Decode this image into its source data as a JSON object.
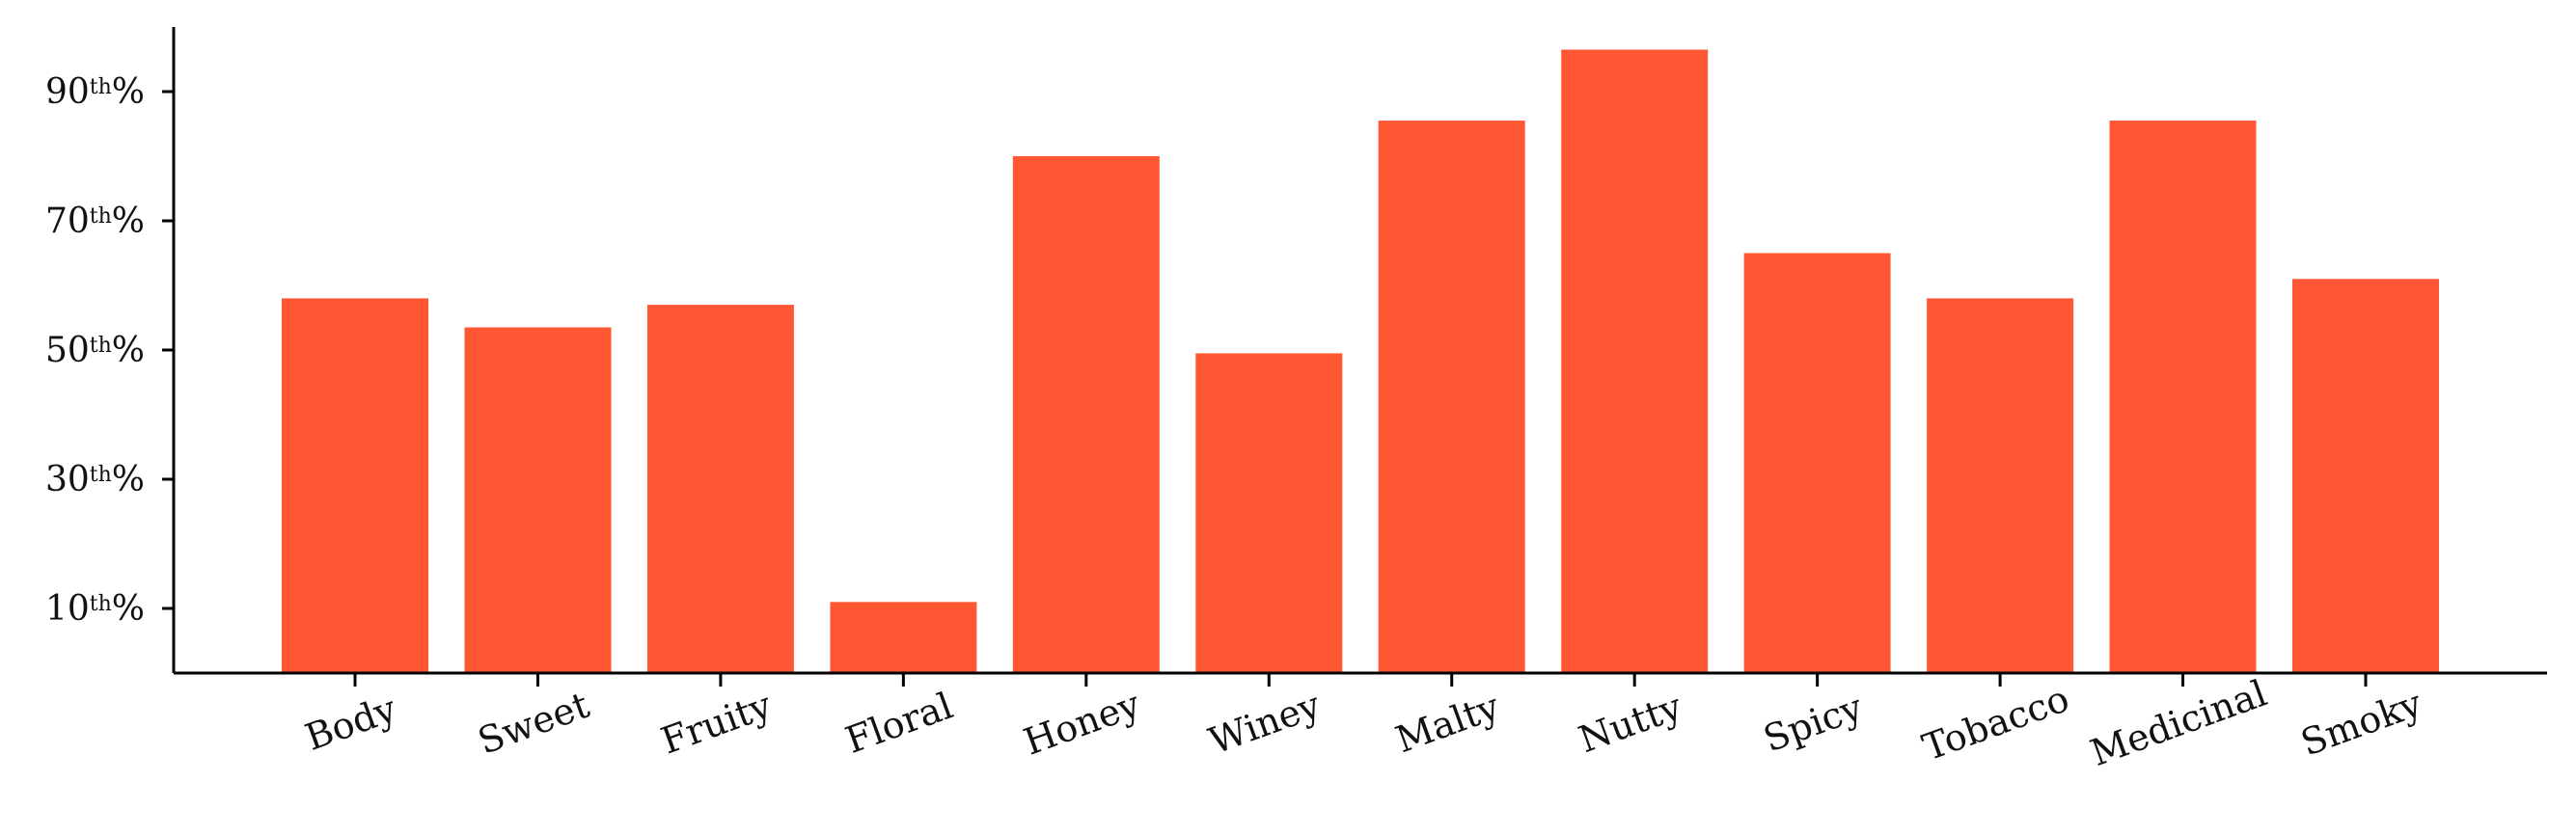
{
  "chart_data": {
    "type": "bar",
    "title": "",
    "xlabel": "",
    "ylabel": "",
    "categories": [
      "Body",
      "Sweet",
      "Fruity",
      "Floral",
      "Honey",
      "Winey",
      "Malty",
      "Nutty",
      "Spicy",
      "Tobacco",
      "Medicinal",
      "Smoky"
    ],
    "values": [
      58,
      53.5,
      57,
      11,
      80,
      49.5,
      85.5,
      96.5,
      65,
      58,
      85.5,
      61
    ],
    "ylim": [
      0,
      100
    ],
    "yticks": [
      10,
      30,
      50,
      70,
      90
    ],
    "ytick_labels": [
      {
        "num": "10",
        "sup": "th",
        "suffix": "%"
      },
      {
        "num": "30",
        "sup": "th",
        "suffix": "%"
      },
      {
        "num": "50",
        "sup": "th",
        "suffix": "%"
      },
      {
        "num": "70",
        "sup": "th",
        "suffix": "%"
      },
      {
        "num": "90",
        "sup": "th",
        "suffix": "%"
      }
    ],
    "bar_color": "#ff5733",
    "grid": false,
    "legend": "none"
  }
}
